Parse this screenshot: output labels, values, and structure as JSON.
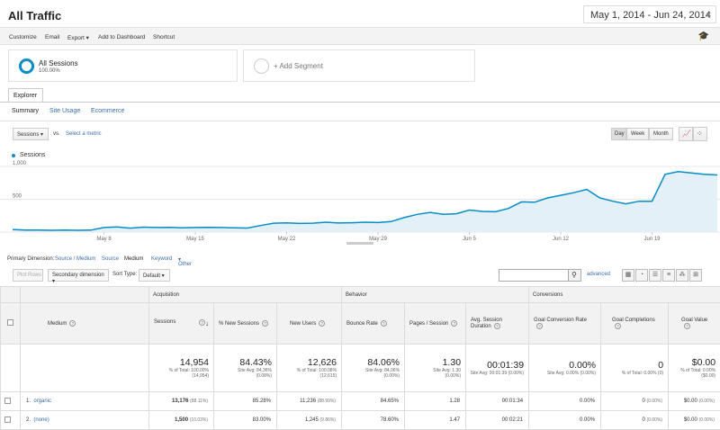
{
  "header": {
    "title": "All Traffic",
    "date_range": "May 1, 2014 - Jun 24, 2014"
  },
  "toolbar": {
    "items": [
      "Customize",
      "Email",
      "Export",
      "Add to Dashboard",
      "Shortcut"
    ],
    "icon": "graduation-cap-icon"
  },
  "segments": {
    "active": {
      "name": "All Sessions",
      "percent": "100.00%"
    },
    "add_label": "+ Add Segment"
  },
  "explorer": {
    "tab": "Explorer",
    "subtabs": [
      "Summary",
      "Site Usage",
      "Ecommerce"
    ]
  },
  "chart_controls": {
    "metric": "Sessions",
    "vs": "vs.",
    "select_metric": "Select a metric",
    "granularity": [
      "Day",
      "Week",
      "Month"
    ],
    "selected_granularity": "Day",
    "chart_icons": [
      "line-chart-icon",
      "motion-chart-icon"
    ]
  },
  "chart_data": {
    "type": "area",
    "series": [
      {
        "name": "Sessions",
        "color": "#058dc7"
      }
    ],
    "x_tick_labels": [
      "May 8",
      "May 15",
      "May 22",
      "May 29",
      "Jun 5",
      "Jun 12",
      "Jun 19"
    ],
    "y_tick_labels": [
      "1,000",
      "500"
    ],
    "ylim": [
      0,
      1000
    ],
    "grid": true,
    "x": [
      "May 1",
      "May 2",
      "May 3",
      "May 4",
      "May 5",
      "May 6",
      "May 7",
      "May 8",
      "May 9",
      "May 10",
      "May 11",
      "May 12",
      "May 13",
      "May 14",
      "May 15",
      "May 16",
      "May 17",
      "May 18",
      "May 19",
      "May 20",
      "May 21",
      "May 22",
      "May 23",
      "May 24",
      "May 25",
      "May 26",
      "May 27",
      "May 28",
      "May 29",
      "May 30",
      "May 31",
      "Jun 1",
      "Jun 2",
      "Jun 3",
      "Jun 4",
      "Jun 5",
      "Jun 6",
      "Jun 7",
      "Jun 8",
      "Jun 9",
      "Jun 10",
      "Jun 11",
      "Jun 12",
      "Jun 13",
      "Jun 14",
      "Jun 15",
      "Jun 16",
      "Jun 17",
      "Jun 18",
      "Jun 19",
      "Jun 20",
      "Jun 21",
      "Jun 22",
      "Jun 23",
      "Jun 24"
    ],
    "values": [
      40,
      32,
      30,
      28,
      30,
      27,
      30,
      70,
      78,
      60,
      75,
      70,
      72,
      65,
      70,
      72,
      70,
      65,
      62,
      100,
      135,
      140,
      132,
      135,
      150,
      138,
      142,
      150,
      145,
      160,
      220,
      270,
      300,
      270,
      280,
      335,
      315,
      310,
      360,
      460,
      455,
      520,
      560,
      600,
      650,
      520,
      470,
      430,
      470,
      470,
      880,
      920,
      900,
      880,
      870
    ]
  },
  "dimensions": {
    "label": "Primary Dimension:",
    "items": [
      "Source / Medium",
      "Source",
      "Medium",
      "Keyword",
      "Other"
    ],
    "selected": "Medium"
  },
  "filters": {
    "plot_rows": "Plot Rows",
    "secondary": "Secondary dimension",
    "sort_type_label": "Sort Type:",
    "sort_type": "Default",
    "advanced": "advanced"
  },
  "table": {
    "groups": [
      "Acquisition",
      "Behavior",
      "Conversions"
    ],
    "columns": [
      "Medium",
      "Sessions",
      "% New Sessions",
      "New Users",
      "Bounce Rate",
      "Pages / Session",
      "Avg. Session Duration",
      "Goal Conversion Rate",
      "Goal Completions",
      "Goal Value"
    ],
    "totals": [
      {
        "value": "14,954",
        "sub1": "% of Total: 100.00%",
        "sub2": "(14,954)"
      },
      {
        "value": "84.43%",
        "sub1": "Site Avg: 84.36%",
        "sub2": "(0.08%)"
      },
      {
        "value": "12,626",
        "sub1": "% of Total: 100.08%",
        "sub2": "(12,615)"
      },
      {
        "value": "84.06%",
        "sub1": "Site Avg: 84.06%",
        "sub2": "(0.00%)"
      },
      {
        "value": "1.30",
        "sub1": "Site Avg: 1.30",
        "sub2": "(0.00%)"
      },
      {
        "value": "00:01:39",
        "sub1": "Site Avg: 00:01:39 (0.00%)",
        "sub2": ""
      },
      {
        "value": "0.00%",
        "sub1": "Site Avg: 0.00% (0.00%)",
        "sub2": ""
      },
      {
        "value": "0",
        "sub1": "% of Total: 0.00% (0)",
        "sub2": ""
      },
      {
        "value": "$0.00",
        "sub1": "% of Total: 0.00%",
        "sub2": "($0.00)"
      }
    ],
    "rows": [
      {
        "index": "1.",
        "medium": "organic",
        "sessions": "13,176",
        "sessions_pct": "(88.11%)",
        "new_sessions": "85.28%",
        "new_users": "11,236",
        "new_users_pct": "(88.99%)",
        "bounce": "84.65%",
        "pages": "1.28",
        "duration": "00:01:34",
        "conv_rate": "0.00%",
        "completions": "0",
        "completions_pct": "(0.00%)",
        "goal_value": "$0.00",
        "goal_value_pct": "(0.00%)"
      },
      {
        "index": "2.",
        "medium": "(none)",
        "sessions": "1,500",
        "sessions_pct": "(10.03%)",
        "new_sessions": "83.00%",
        "new_users": "1,245",
        "new_users_pct": "(9.86%)",
        "bounce": "78.60%",
        "pages": "1.47",
        "duration": "00:02:21",
        "conv_rate": "0.00%",
        "completions": "0",
        "completions_pct": "(0.00%)",
        "goal_value": "$0.00",
        "goal_value_pct": "(0.00%)"
      }
    ]
  }
}
